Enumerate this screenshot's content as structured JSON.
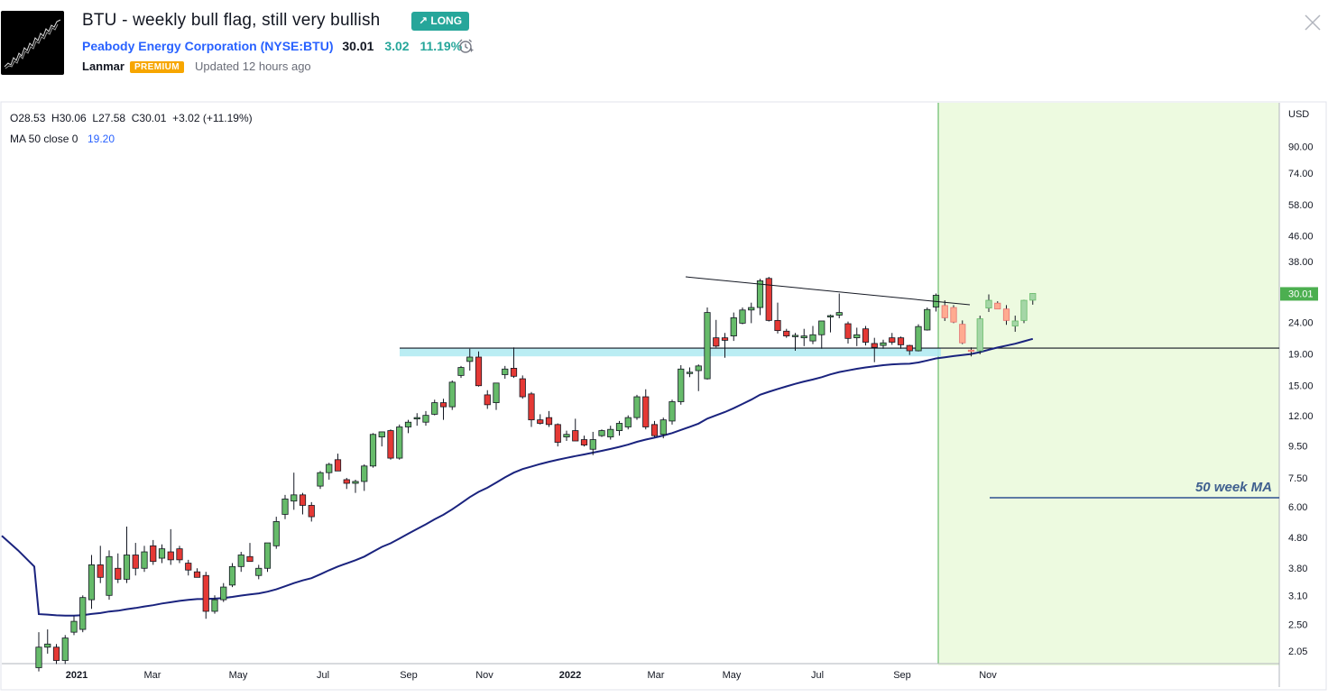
{
  "header": {
    "title": "BTU - weekly bull flag, still very bullish",
    "idea_badge": "↗ LONG",
    "company": "Peabody Energy Corporation",
    "ticker": "(NYSE:BTU)",
    "price": "30.01",
    "change": "3.02",
    "change_pct": "11.19%",
    "author": "Lanmar",
    "author_badge": "PREMIUM",
    "updated": "Updated 12 hours ago"
  },
  "chart_data": {
    "type": "candlestick",
    "currency": "USD",
    "scale": "log",
    "legend": {
      "ohlc": "O28.53  H30.06  L27.58  C30.01  +3.02 (+11.19%)",
      "ma": "MA 50 close 0",
      "ma_value": "19.20"
    },
    "y_ticks": [
      "90.00",
      "74.00",
      "58.00",
      "46.00",
      "38.00",
      "30.01",
      "24.00",
      "19.00",
      "15.00",
      "12.00",
      "9.50",
      "7.50",
      "6.00",
      "4.80",
      "3.80",
      "3.10",
      "2.50",
      "2.05"
    ],
    "last_price_label": "30.01",
    "x_ticks": [
      "2021",
      "Mar",
      "May",
      "Jul",
      "Sep",
      "Nov",
      "2022",
      "Mar",
      "May",
      "Jul",
      "Sep",
      "Nov"
    ],
    "annotation": "50 week MA",
    "support_level": 19.4,
    "candles": [
      {
        "o": 1.8,
        "h": 2.35,
        "l": 1.75,
        "c": 2.1
      },
      {
        "o": 2.1,
        "h": 2.4,
        "l": 2.0,
        "c": 2.15
      },
      {
        "o": 2.1,
        "h": 2.15,
        "l": 1.85,
        "c": 1.9
      },
      {
        "o": 1.9,
        "h": 2.3,
        "l": 1.85,
        "c": 2.25
      },
      {
        "o": 2.35,
        "h": 2.65,
        "l": 2.3,
        "c": 2.55
      },
      {
        "o": 2.4,
        "h": 3.1,
        "l": 2.35,
        "c": 3.05
      },
      {
        "o": 3.0,
        "h": 4.2,
        "l": 2.8,
        "c": 3.9
      },
      {
        "o": 3.9,
        "h": 4.5,
        "l": 3.4,
        "c": 3.55
      },
      {
        "o": 3.1,
        "h": 4.35,
        "l": 3.0,
        "c": 4.15
      },
      {
        "o": 3.8,
        "h": 4.25,
        "l": 3.4,
        "c": 3.5
      },
      {
        "o": 3.5,
        "h": 5.2,
        "l": 3.4,
        "c": 4.2
      },
      {
        "o": 4.2,
        "h": 4.6,
        "l": 3.6,
        "c": 3.8
      },
      {
        "o": 3.8,
        "h": 4.5,
        "l": 3.7,
        "c": 4.3
      },
      {
        "o": 4.5,
        "h": 4.7,
        "l": 3.9,
        "c": 4.0
      },
      {
        "o": 4.1,
        "h": 4.55,
        "l": 3.95,
        "c": 4.4
      },
      {
        "o": 4.3,
        "h": 5.1,
        "l": 3.9,
        "c": 4.05
      },
      {
        "o": 4.4,
        "h": 4.5,
        "l": 3.95,
        "c": 4.05
      },
      {
        "o": 3.95,
        "h": 4.05,
        "l": 3.6,
        "c": 3.75
      },
      {
        "o": 3.7,
        "h": 3.8,
        "l": 3.55,
        "c": 3.55
      },
      {
        "o": 3.6,
        "h": 3.7,
        "l": 2.6,
        "c": 2.75
      },
      {
        "o": 2.75,
        "h": 3.1,
        "l": 2.7,
        "c": 3.0
      },
      {
        "o": 3.0,
        "h": 3.4,
        "l": 2.95,
        "c": 3.3
      },
      {
        "o": 3.35,
        "h": 3.95,
        "l": 3.3,
        "c": 3.85
      },
      {
        "o": 3.85,
        "h": 4.3,
        "l": 3.7,
        "c": 4.2
      },
      {
        "o": 4.15,
        "h": 4.6,
        "l": 4.0,
        "c": 4.0
      },
      {
        "o": 3.6,
        "h": 3.9,
        "l": 3.5,
        "c": 3.8
      },
      {
        "o": 3.8,
        "h": 4.6,
        "l": 3.7,
        "c": 4.6
      },
      {
        "o": 4.5,
        "h": 5.6,
        "l": 4.4,
        "c": 5.4
      },
      {
        "o": 5.7,
        "h": 6.6,
        "l": 5.5,
        "c": 6.4
      },
      {
        "o": 6.3,
        "h": 7.8,
        "l": 5.9,
        "c": 6.6
      },
      {
        "o": 6.6,
        "h": 6.7,
        "l": 5.7,
        "c": 6.1
      },
      {
        "o": 6.1,
        "h": 6.25,
        "l": 5.4,
        "c": 5.6
      },
      {
        "o": 7.05,
        "h": 7.9,
        "l": 6.9,
        "c": 7.8
      },
      {
        "o": 7.8,
        "h": 8.4,
        "l": 7.4,
        "c": 8.3
      },
      {
        "o": 8.6,
        "h": 9.0,
        "l": 7.9,
        "c": 7.9
      },
      {
        "o": 7.4,
        "h": 7.5,
        "l": 6.9,
        "c": 7.2
      },
      {
        "o": 7.2,
        "h": 7.4,
        "l": 6.7,
        "c": 7.3
      },
      {
        "o": 7.3,
        "h": 8.3,
        "l": 6.8,
        "c": 8.2
      },
      {
        "o": 8.2,
        "h": 10.5,
        "l": 8.1,
        "c": 10.4
      },
      {
        "o": 10.2,
        "h": 10.6,
        "l": 9.5,
        "c": 10.6
      },
      {
        "o": 10.7,
        "h": 10.8,
        "l": 8.6,
        "c": 8.7
      },
      {
        "o": 8.7,
        "h": 11.2,
        "l": 8.6,
        "c": 11.0
      },
      {
        "o": 11.0,
        "h": 11.6,
        "l": 10.5,
        "c": 11.4
      },
      {
        "o": 11.8,
        "h": 12.2,
        "l": 11.1,
        "c": 11.8
      },
      {
        "o": 11.4,
        "h": 12.4,
        "l": 11.1,
        "c": 12.0
      },
      {
        "o": 12.1,
        "h": 13.5,
        "l": 12.0,
        "c": 13.2
      },
      {
        "o": 13.2,
        "h": 13.6,
        "l": 11.6,
        "c": 12.8
      },
      {
        "o": 12.8,
        "h": 15.6,
        "l": 12.5,
        "c": 15.4
      },
      {
        "o": 16.2,
        "h": 17.4,
        "l": 15.9,
        "c": 17.2
      },
      {
        "o": 18.0,
        "h": 19.8,
        "l": 16.8,
        "c": 18.6
      },
      {
        "o": 18.6,
        "h": 19.4,
        "l": 14.9,
        "c": 15.0
      },
      {
        "o": 14.0,
        "h": 14.5,
        "l": 12.6,
        "c": 13.0
      },
      {
        "o": 13.2,
        "h": 15.3,
        "l": 12.5,
        "c": 15.3
      },
      {
        "o": 16.3,
        "h": 17.4,
        "l": 15.8,
        "c": 17.0
      },
      {
        "o": 17.1,
        "h": 20.0,
        "l": 15.9,
        "c": 16.1
      },
      {
        "o": 15.8,
        "h": 16.2,
        "l": 13.6,
        "c": 13.8
      },
      {
        "o": 14.1,
        "h": 14.3,
        "l": 11.0,
        "c": 11.6
      },
      {
        "o": 11.6,
        "h": 12.1,
        "l": 11.2,
        "c": 11.3
      },
      {
        "o": 11.8,
        "h": 12.4,
        "l": 11.0,
        "c": 11.2
      },
      {
        "o": 11.2,
        "h": 11.3,
        "l": 9.5,
        "c": 9.8
      },
      {
        "o": 10.2,
        "h": 10.7,
        "l": 9.9,
        "c": 10.4
      },
      {
        "o": 10.7,
        "h": 11.7,
        "l": 9.9,
        "c": 9.9
      },
      {
        "o": 10.0,
        "h": 10.3,
        "l": 9.5,
        "c": 9.6
      },
      {
        "o": 9.3,
        "h": 10.6,
        "l": 8.9,
        "c": 10.0
      },
      {
        "o": 10.3,
        "h": 10.8,
        "l": 10.2,
        "c": 10.7
      },
      {
        "o": 10.2,
        "h": 11.1,
        "l": 10.0,
        "c": 10.8
      },
      {
        "o": 10.7,
        "h": 11.5,
        "l": 10.3,
        "c": 11.3
      },
      {
        "o": 11.0,
        "h": 12.0,
        "l": 10.8,
        "c": 11.8
      },
      {
        "o": 11.8,
        "h": 14.0,
        "l": 11.6,
        "c": 13.8
      },
      {
        "o": 13.8,
        "h": 14.6,
        "l": 10.8,
        "c": 11.0
      },
      {
        "o": 11.2,
        "h": 11.5,
        "l": 10.2,
        "c": 10.3
      },
      {
        "o": 10.4,
        "h": 11.8,
        "l": 10.1,
        "c": 11.6
      },
      {
        "o": 11.5,
        "h": 13.5,
        "l": 11.2,
        "c": 13.3
      },
      {
        "o": 13.3,
        "h": 17.5,
        "l": 13.0,
        "c": 17.0
      },
      {
        "o": 16.6,
        "h": 17.2,
        "l": 16.0,
        "c": 16.6
      },
      {
        "o": 16.8,
        "h": 17.6,
        "l": 14.4,
        "c": 17.4
      },
      {
        "o": 15.8,
        "h": 27.0,
        "l": 15.7,
        "c": 26.0
      },
      {
        "o": 21.5,
        "h": 24.6,
        "l": 20.0,
        "c": 20.2
      },
      {
        "o": 21.5,
        "h": 22.3,
        "l": 18.5,
        "c": 21.1
      },
      {
        "o": 21.8,
        "h": 26.0,
        "l": 21.0,
        "c": 25.0
      },
      {
        "o": 24.0,
        "h": 27.0,
        "l": 23.8,
        "c": 26.5
      },
      {
        "o": 26.5,
        "h": 28.0,
        "l": 24.0,
        "c": 27.0
      },
      {
        "o": 27.0,
        "h": 33.5,
        "l": 25.5,
        "c": 33.0
      },
      {
        "o": 33.6,
        "h": 34.0,
        "l": 24.3,
        "c": 24.5
      },
      {
        "o": 24.5,
        "h": 28.0,
        "l": 22.2,
        "c": 22.7
      },
      {
        "o": 22.6,
        "h": 23.0,
        "l": 21.5,
        "c": 21.8
      },
      {
        "o": 21.8,
        "h": 22.3,
        "l": 19.5,
        "c": 21.9
      },
      {
        "o": 21.5,
        "h": 23.0,
        "l": 20.2,
        "c": 21.8
      },
      {
        "o": 21.0,
        "h": 23.5,
        "l": 20.5,
        "c": 22.0
      },
      {
        "o": 22.0,
        "h": 24.4,
        "l": 19.8,
        "c": 24.4
      },
      {
        "o": 25.2,
        "h": 25.6,
        "l": 22.4,
        "c": 25.4
      },
      {
        "o": 25.5,
        "h": 30.0,
        "l": 24.9,
        "c": 26.0
      },
      {
        "o": 23.9,
        "h": 24.3,
        "l": 20.6,
        "c": 21.4
      },
      {
        "o": 21.5,
        "h": 23.2,
        "l": 20.2,
        "c": 22.0
      },
      {
        "o": 23.0,
        "h": 23.5,
        "l": 20.3,
        "c": 20.8
      },
      {
        "o": 20.6,
        "h": 21.5,
        "l": 17.9,
        "c": 20.0
      },
      {
        "o": 20.3,
        "h": 21.2,
        "l": 19.8,
        "c": 20.7
      },
      {
        "o": 21.5,
        "h": 22.3,
        "l": 20.4,
        "c": 20.8
      },
      {
        "o": 21.5,
        "h": 21.7,
        "l": 19.8,
        "c": 20.4
      },
      {
        "o": 20.3,
        "h": 20.4,
        "l": 18.9,
        "c": 19.5
      },
      {
        "o": 19.5,
        "h": 23.8,
        "l": 19.4,
        "c": 23.4
      },
      {
        "o": 22.8,
        "h": 27.0,
        "l": 22.7,
        "c": 26.6
      },
      {
        "o": 27.1,
        "h": 30.0,
        "l": 26.2,
        "c": 29.6
      },
      {
        "o": 27.4,
        "h": 28.5,
        "l": 24.4,
        "c": 25.0
      },
      {
        "o": 27.0,
        "h": 27.5,
        "l": 24.0,
        "c": 24.2
      },
      {
        "o": 23.8,
        "h": 24.5,
        "l": 20.5,
        "c": 20.7
      },
      {
        "o": 19.6,
        "h": 20.0,
        "l": 18.7,
        "c": 19.5
      },
      {
        "o": 19.5,
        "h": 25.4,
        "l": 19.0,
        "c": 24.8
      },
      {
        "o": 26.9,
        "h": 29.8,
        "l": 26.1,
        "c": 28.5
      },
      {
        "o": 27.9,
        "h": 28.3,
        "l": 26.7,
        "c": 26.7
      },
      {
        "o": 26.7,
        "h": 27.5,
        "l": 23.7,
        "c": 24.5
      },
      {
        "o": 23.5,
        "h": 25.4,
        "l": 22.5,
        "c": 24.4
      },
      {
        "o": 24.5,
        "h": 28.6,
        "l": 24.0,
        "c": 28.5
      },
      {
        "o": 28.53,
        "h": 30.06,
        "l": 27.58,
        "c": 30.01
      }
    ]
  }
}
